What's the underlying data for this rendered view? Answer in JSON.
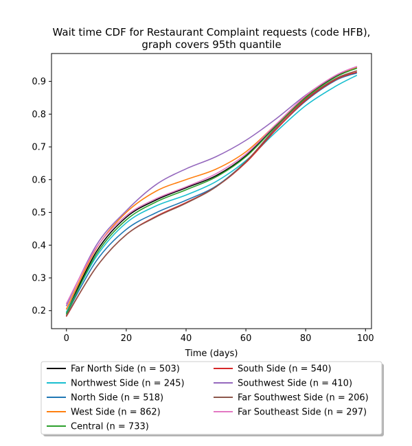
{
  "chart_data": {
    "type": "line",
    "title": "Wait time CDF for Restaurant Complaint  requests (code HFB),",
    "subtitle": "graph covers 95th quantile",
    "xlabel": "Time (days)",
    "ylabel": "",
    "xlim": [
      -5,
      102
    ],
    "ylim": [
      0.145,
      0.985
    ],
    "xticks": [
      0,
      20,
      40,
      60,
      80,
      100
    ],
    "yticks": [
      0.2,
      0.3,
      0.4,
      0.5,
      0.6,
      0.7,
      0.8,
      0.9
    ],
    "grid": false,
    "legend_position": "below",
    "x": [
      0,
      10,
      20,
      30,
      40,
      50,
      60,
      70,
      80,
      90,
      97
    ],
    "series": [
      {
        "name": "Far North Side (n = 503)",
        "color": "#000000",
        "values": [
          0.195,
          0.38,
          0.485,
          0.538,
          0.575,
          0.612,
          0.673,
          0.765,
          0.852,
          0.915,
          0.94
        ]
      },
      {
        "name": "Northwest Side (n = 245)",
        "color": "#17becf",
        "values": [
          0.195,
          0.365,
          0.468,
          0.52,
          0.553,
          0.594,
          0.658,
          0.745,
          0.826,
          0.885,
          0.918
        ]
      },
      {
        "name": "North Side (n = 518)",
        "color": "#1f77b4",
        "values": [
          0.19,
          0.352,
          0.448,
          0.499,
          0.537,
          0.58,
          0.655,
          0.753,
          0.84,
          0.903,
          0.925
        ]
      },
      {
        "name": "West Side (n = 862)",
        "color": "#ff7f0e",
        "values": [
          0.205,
          0.39,
          0.5,
          0.565,
          0.6,
          0.632,
          0.685,
          0.768,
          0.855,
          0.918,
          0.942
        ]
      },
      {
        "name": "Central (n = 733)",
        "color": "#2ca02c",
        "values": [
          0.19,
          0.372,
          0.477,
          0.532,
          0.569,
          0.608,
          0.67,
          0.762,
          0.85,
          0.913,
          0.94
        ]
      },
      {
        "name": "South Side (n = 540)",
        "color": "#d62728",
        "values": [
          0.183,
          0.333,
          0.432,
          0.488,
          0.53,
          0.578,
          0.652,
          0.752,
          0.842,
          0.905,
          0.928
        ]
      },
      {
        "name": "Southwest Side (n = 410)",
        "color": "#9467bd",
        "values": [
          0.215,
          0.4,
          0.505,
          0.585,
          0.633,
          0.67,
          0.72,
          0.785,
          0.858,
          0.918,
          0.945
        ]
      },
      {
        "name": "Far Southwest Side (n = 206)",
        "color": "#8c564b",
        "values": [
          0.185,
          0.333,
          0.432,
          0.486,
          0.528,
          0.578,
          0.655,
          0.758,
          0.846,
          0.908,
          0.932
        ]
      },
      {
        "name": "Far Southeast Side (n = 297)",
        "color": "#e377c2",
        "values": [
          0.222,
          0.392,
          0.49,
          0.542,
          0.578,
          0.618,
          0.678,
          0.768,
          0.856,
          0.918,
          0.945
        ]
      }
    ]
  }
}
